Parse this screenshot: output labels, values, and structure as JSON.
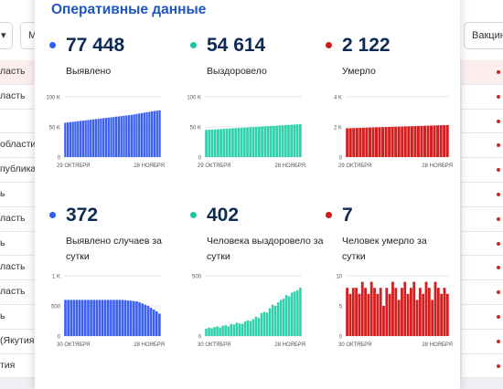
{
  "background": {
    "filter_pills": [
      {
        "label": "▾"
      },
      {
        "label": "М"
      },
      {
        "label": "Вакцин"
      }
    ],
    "regions": [
      "ласть",
      "ласть",
      "",
      "области",
      "публика",
      "ь",
      "ласть",
      "ь",
      "ласть",
      "ласть",
      "ь",
      "(Якутия)",
      "тия"
    ]
  },
  "card": {
    "title": "Оперативные данные"
  },
  "stats": [
    {
      "value": "77 448",
      "label": "Выявлено",
      "color": "#2a5ff0"
    },
    {
      "value": "54 614",
      "label": "Выздоровело",
      "color": "#1ec6a0"
    },
    {
      "value": "2 122",
      "label": "Умерло",
      "color": "#cc1c1c"
    },
    {
      "value": "372",
      "label": "Выявлено случаев за сутки",
      "color": "#2a5ff0"
    },
    {
      "value": "402",
      "label": "Человека выздоровело за сутки",
      "color": "#1ec6a0"
    },
    {
      "value": "7",
      "label": "Человек умерло за сутки",
      "color": "#cc1c1c"
    }
  ],
  "chart_data": [
    {
      "type": "bar",
      "ylim": [
        0,
        100000
      ],
      "yticks": [
        "100 K",
        "50 K",
        "0"
      ],
      "xlabels": [
        "29 ОКТЯБРЯ",
        "28 НОЯБРЯ"
      ],
      "color": "#3b5fef",
      "values": [
        57000,
        57500,
        58000,
        58500,
        59000,
        59500,
        60000,
        60500,
        61000,
        61500,
        62000,
        62500,
        63000,
        63500,
        64000,
        64500,
        65000,
        65500,
        66000,
        66500,
        67000,
        67500,
        68000,
        68500,
        69000,
        69500,
        70000,
        70800,
        71500,
        72300,
        73000,
        73700,
        74400,
        75100,
        75800,
        76500,
        77100,
        77448
      ]
    },
    {
      "type": "bar",
      "ylim": [
        0,
        100000
      ],
      "yticks": [
        "100 K",
        "50 K",
        "0"
      ],
      "xlabels": [
        "29 ОКТЯБРЯ",
        "28 НОЯБРЯ"
      ],
      "color": "#2ed1ab",
      "values": [
        45000,
        45300,
        45600,
        45900,
        46200,
        46500,
        46800,
        47100,
        47400,
        47700,
        48000,
        48300,
        48600,
        48900,
        49200,
        49500,
        49800,
        50100,
        50400,
        50700,
        51000,
        51300,
        51600,
        51900,
        52200,
        52500,
        52800,
        53100,
        53400,
        53700,
        54000,
        54300,
        54614
      ]
    },
    {
      "type": "bar",
      "ylim": [
        0,
        4000
      ],
      "yticks": [
        "4 K",
        "2 K",
        "0"
      ],
      "xlabels": [
        "29 ОКТЯБРЯ",
        "28 НОЯБРЯ"
      ],
      "color": "#d41f1f",
      "values": [
        1910,
        1917,
        1924,
        1931,
        1938,
        1945,
        1952,
        1959,
        1966,
        1973,
        1980,
        1987,
        1994,
        2001,
        2008,
        2015,
        2022,
        2029,
        2036,
        2043,
        2050,
        2057,
        2064,
        2071,
        2078,
        2085,
        2092,
        2099,
        2106,
        2113,
        2118,
        2122
      ]
    },
    {
      "type": "bar",
      "ylim": [
        0,
        1000
      ],
      "yticks": [
        "1 K",
        "500",
        "0"
      ],
      "xlabels": [
        "30 ОКТЯБРЯ",
        "28 НОЯБРЯ"
      ],
      "color": "#3b5fef",
      "values": [
        600,
        600,
        600,
        600,
        600,
        600,
        600,
        600,
        600,
        600,
        600,
        600,
        600,
        600,
        600,
        600,
        600,
        600,
        600,
        600,
        600,
        595,
        590,
        585,
        580,
        575,
        560,
        540,
        520,
        500,
        470,
        440,
        410,
        372
      ]
    },
    {
      "type": "bar",
      "ylim": [
        0,
        500
      ],
      "yticks": [
        "500",
        "0"
      ],
      "xlabels": [
        "30 ОКТЯБРЯ",
        "28 НОЯБРЯ"
      ],
      "color": "#2ed1ab",
      "values": [
        60,
        70,
        65,
        75,
        80,
        70,
        85,
        90,
        80,
        100,
        95,
        110,
        105,
        100,
        120,
        130,
        125,
        140,
        160,
        150,
        190,
        200,
        195,
        230,
        260,
        250,
        280,
        300,
        310,
        340,
        330,
        360,
        370,
        380,
        402
      ]
    },
    {
      "type": "bar",
      "ylim": [
        0,
        10
      ],
      "yticks": [
        "10",
        "5",
        "0"
      ],
      "xlabels": [
        "30 ОКТЯБРЯ",
        "28 НОЯБРЯ"
      ],
      "color": "#d41f1f",
      "values": [
        8,
        7,
        8,
        8,
        7,
        9,
        8,
        7,
        9,
        8,
        7,
        8,
        5,
        8,
        7,
        9,
        8,
        6,
        8,
        9,
        7,
        8,
        9,
        6,
        8,
        7,
        9,
        8,
        6,
        9,
        8,
        7,
        8,
        7
      ]
    }
  ]
}
